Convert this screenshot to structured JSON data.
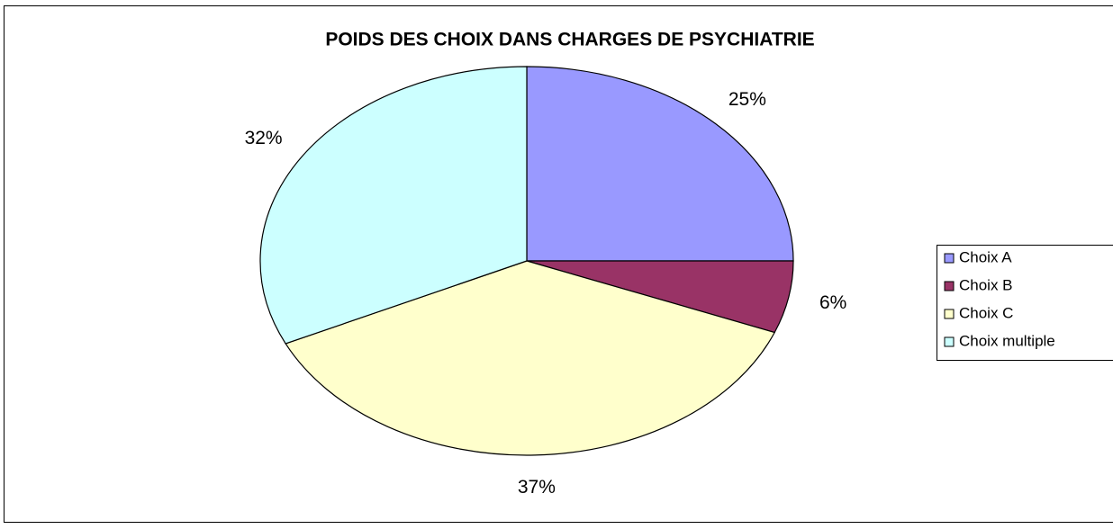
{
  "chart_data": {
    "type": "pie",
    "title": "POIDS DES CHOIX DANS CHARGES DE PSYCHIATRIE",
    "categories": [
      "Choix A",
      "Choix B",
      "Choix C",
      "Choix multiple"
    ],
    "values": [
      25,
      6,
      37,
      32
    ],
    "value_labels": [
      "25%",
      "6%",
      "37%",
      "32%"
    ],
    "colors": [
      "#9999ff",
      "#993366",
      "#ffffcc",
      "#ccffff"
    ],
    "legend": "right"
  }
}
